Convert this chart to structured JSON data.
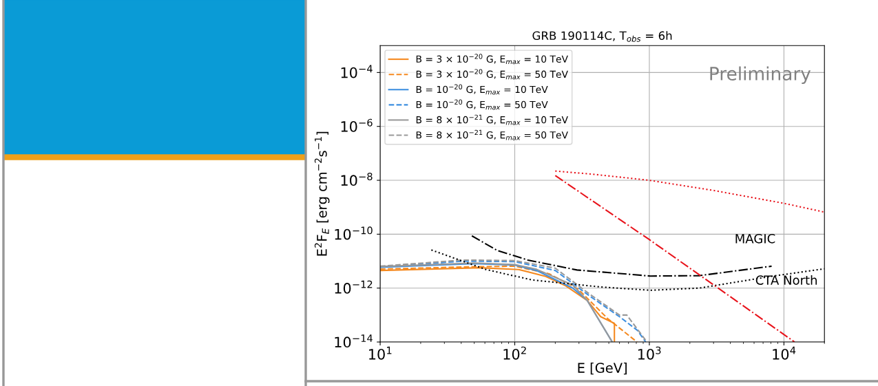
{
  "chart_data": {
    "type": "line",
    "title": "GRB 190114C, T$_{obs}$ = 6h",
    "xlabel": "E [GeV]",
    "ylabel": "E$^{2}$F$_{E}$ [erg cm$^{−2}$s$^{−1}$]",
    "log": "xy",
    "grid": true,
    "legend": "top left",
    "xlim": [
      10,
      20000
    ],
    "ylim": [
      1e-14,
      0.001
    ],
    "xticks": [
      {
        "value": 10,
        "label": "10$^{1}$"
      },
      {
        "value": 100,
        "label": "10$^{2}$"
      },
      {
        "value": 1000,
        "label": "10$^{3}$"
      },
      {
        "value": 10000,
        "label": "10$^{4}$"
      }
    ],
    "yticks": [
      {
        "value": 1e-14,
        "label": "10$^{−14}$"
      },
      {
        "value": 1e-12,
        "label": "10$^{−12}$"
      },
      {
        "value": 1e-10,
        "label": "10$^{−10}$"
      },
      {
        "value": 1e-08,
        "label": "10$^{−8}$"
      },
      {
        "value": 1e-06,
        "label": "10$^{−6}$"
      },
      {
        "value": 0.0001,
        "label": "10$^{−4}$"
      }
    ],
    "series": [
      {
        "name": "B = 3 × 10$^{−20}$ G, E$_{max}$ = 10 TeV",
        "color": "#f5891f",
        "line_style": "solid",
        "x": [
          10,
          55,
          107,
          170,
          240,
          345,
          435,
          550,
          550
        ],
        "values": [
          4.5e-12,
          5.7e-12,
          4.9e-12,
          2.7e-12,
          1.2e-12,
          3.5e-13,
          8.7e-14,
          4.9e-14,
          1e-14
        ]
      },
      {
        "name": "B = 3 × 10$^{−20}$ G, E$_{max}$ = 50 TeV",
        "color": "#f5891f",
        "line_style": "dashed",
        "x": [
          10,
          50,
          100,
          180,
          295,
          490,
          810
        ],
        "values": [
          5.1e-12,
          6.2e-12,
          6.5e-12,
          3.4e-12,
          9.3e-13,
          7.4e-14,
          1e-14
        ]
      },
      {
        "name": "B = 10$^{−20}$ G, E$_{max}$ = 10 TeV",
        "color": "#3d8fe0",
        "line_style": "solid",
        "x": [
          10,
          50,
          100,
          145,
          270,
          345,
          530
        ],
        "values": [
          5.9e-12,
          8.1e-12,
          7.2e-12,
          4.5e-12,
          1e-12,
          3.5e-13,
          1e-14
        ]
      },
      {
        "name": "B = 10$^{−20}$ G, E$_{max}$ = 50 TeV",
        "color": "#3d8fe0",
        "line_style": "dashed",
        "x": [
          10,
          41,
          100,
          200,
          360,
          600,
          815,
          940
        ],
        "values": [
          6e-12,
          1e-11,
          9.6e-12,
          4.5e-12,
          5.1e-13,
          8.7e-14,
          2.7e-14,
          1e-14
        ]
      },
      {
        "name": "B = 8 × 10$^{−21}$ G, E$_{max}$ = 10 TeV",
        "color": "#999999",
        "line_style": "solid",
        "x": [
          10,
          50,
          100,
          145,
          270,
          345,
          530
        ],
        "values": [
          6.3e-12,
          8.5e-12,
          7.5e-12,
          5e-12,
          1.3e-12,
          3.5e-13,
          1e-14
        ]
      },
      {
        "name": "B = 8 × 10$^{−21}$ G, E$_{max}$ = 50 TeV",
        "color": "#999999",
        "line_style": "dashed",
        "x": [
          10,
          41,
          100,
          200,
          360,
          600,
          680,
          960
        ],
        "values": [
          6.5e-12,
          1.1e-11,
          1.05e-11,
          5.5e-12,
          6e-13,
          1e-13,
          1e-13,
          1e-14
        ]
      },
      {
        "color": "#000000",
        "line_style": "dashdot",
        "x": [
          48,
          74,
          125,
          290,
          1020,
          2350,
          8100
        ],
        "values": [
          8.7e-11,
          2.5e-11,
          1.1e-11,
          4.7e-12,
          2.8e-12,
          2.9e-12,
          6.5e-12
        ]
      },
      {
        "color": "#000000",
        "line_style": "dotted",
        "x": [
          24,
          61,
          135,
          435,
          1020,
          2350,
          8300,
          20000
        ],
        "values": [
          2.6e-11,
          4.9e-12,
          2e-12,
          1.1e-12,
          8.3e-13,
          1e-12,
          2.8e-12,
          5.2e-12
        ]
      },
      {
        "color": "#e8131b",
        "line_style": "dotted",
        "x": [
          200,
          372,
          1000,
          3000,
          10000,
          20000
        ],
        "values": [
          2.2e-08,
          1.7e-08,
          1e-08,
          4.2e-09,
          1.4e-09,
          6.6e-10
        ]
      },
      {
        "color": "#e8131b",
        "line_style": "dashdot",
        "x": [
          200,
          1000,
          12000
        ],
        "values": [
          1.5e-08,
          6.3e-11,
          1e-14
        ]
      }
    ],
    "annotations": [
      "MAGIC",
      "CTA North",
      "Preliminary"
    ]
  }
}
